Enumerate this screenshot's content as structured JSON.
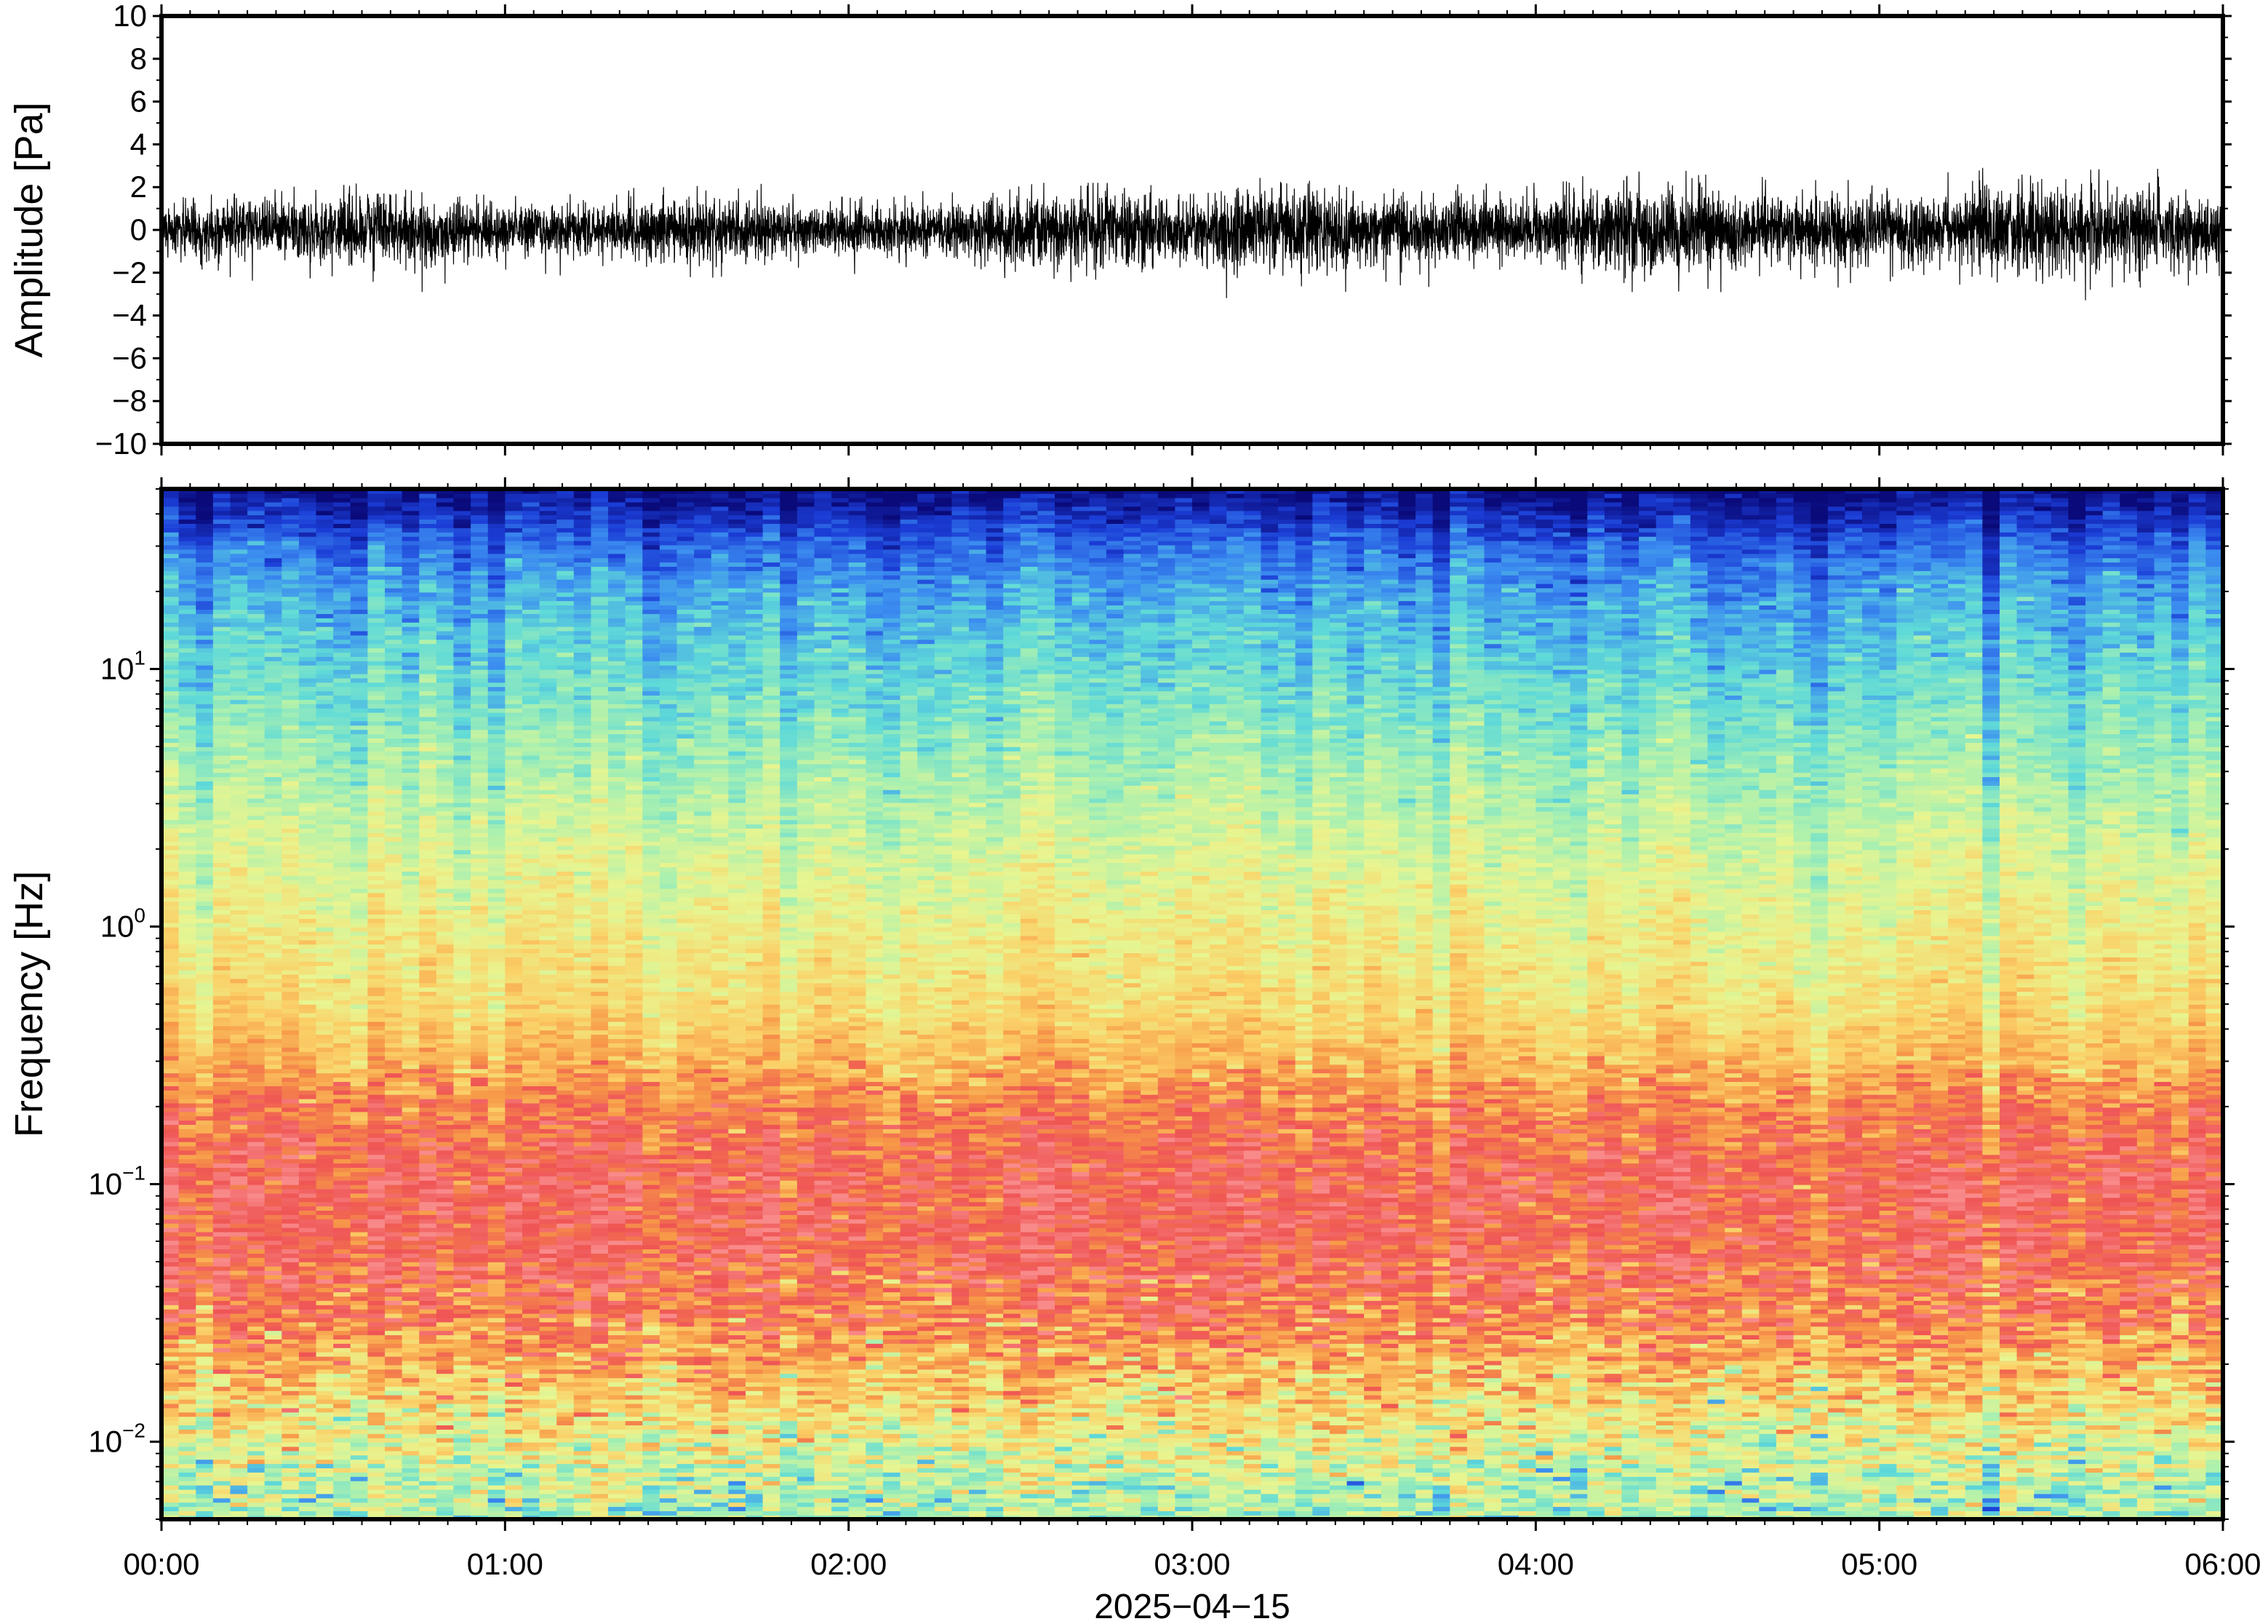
{
  "chart_data": [
    {
      "type": "line",
      "panel": "waveform",
      "title": "",
      "xlabel": "",
      "ylabel": "Amplitude [Pa]",
      "ylim": [
        -10,
        10
      ],
      "y_ticks": [
        10,
        8,
        6,
        4,
        2,
        0,
        -2,
        -4,
        -6,
        -8,
        -10
      ],
      "y_tick_labels": [
        "10",
        "8",
        "6",
        "4",
        "2",
        "0",
        "−2",
        "−4",
        "−6",
        "−8",
        "−10"
      ],
      "xlim": [
        "2025-04-15T00:00",
        "2025-04-15T06:00"
      ],
      "series": [
        {
          "color": "#000000",
          "x_hours": [
            0.0,
            0.25,
            0.5,
            0.75,
            1.0,
            1.25,
            1.5,
            1.75,
            2.0,
            2.25,
            2.5,
            2.75,
            3.0,
            3.25,
            3.5,
            3.75,
            4.0,
            4.25,
            4.5,
            4.75,
            5.0,
            5.25,
            5.5,
            5.75,
            6.0
          ],
          "envelope_max": [
            1.6,
            1.7,
            2.3,
            1.8,
            1.6,
            1.7,
            2.3,
            2.2,
            1.5,
            1.9,
            2.2,
            2.2,
            2.0,
            2.9,
            2.3,
            2.2,
            2.2,
            3.3,
            2.8,
            2.6,
            2.6,
            2.9,
            2.9,
            3.0,
            2.4
          ],
          "envelope_min": [
            -2.4,
            -2.6,
            -2.3,
            -3.3,
            -2.0,
            -2.2,
            -2.4,
            -2.0,
            -2.1,
            -2.2,
            -2.7,
            -3.8,
            -2.7,
            -4.2,
            -2.8,
            -2.7,
            -2.3,
            -3.4,
            -3.2,
            -2.8,
            -2.6,
            -2.9,
            -3.9,
            -2.7,
            -2.6
          ]
        }
      ]
    },
    {
      "type": "heatmap",
      "panel": "spectrogram",
      "title": "",
      "xlabel": "2025−04−15",
      "ylabel": "Frequency [Hz]",
      "y_scale": "log",
      "ylim_hz": [
        0.005,
        50
      ],
      "y_ticks_hz": [
        10,
        1,
        0.1,
        0.01
      ],
      "y_tick_labels": [
        {
          "base": "10",
          "exp": "1"
        },
        {
          "base": "10",
          "exp": "0"
        },
        {
          "base": "10",
          "exp": "−1"
        },
        {
          "base": "10",
          "exp": "−2"
        }
      ],
      "x_ticks": [
        "00:00",
        "01:00",
        "02:00",
        "03:00",
        "04:00",
        "05:00",
        "06:00"
      ],
      "colormap": "rainbow (low power = blue, high power = pink/red)",
      "color_stops": [
        "#0a0a7a",
        "#1b3dd6",
        "#3b8cf0",
        "#5fdad8",
        "#a9f0b0",
        "#e8f590",
        "#fbd067",
        "#f79a48",
        "#ef5454",
        "#f98a8a"
      ],
      "profile_freq_hz": [
        50,
        40,
        30,
        20,
        10,
        5,
        2,
        1,
        0.5,
        0.3,
        0.2,
        0.1,
        0.05,
        0.03,
        0.02,
        0.012,
        0.007,
        0.005
      ],
      "profile_level": [
        0.0,
        0.08,
        0.18,
        0.26,
        0.34,
        0.42,
        0.52,
        0.58,
        0.63,
        0.72,
        0.82,
        0.9,
        0.88,
        0.82,
        0.72,
        0.6,
        0.48,
        0.45
      ]
    }
  ]
}
